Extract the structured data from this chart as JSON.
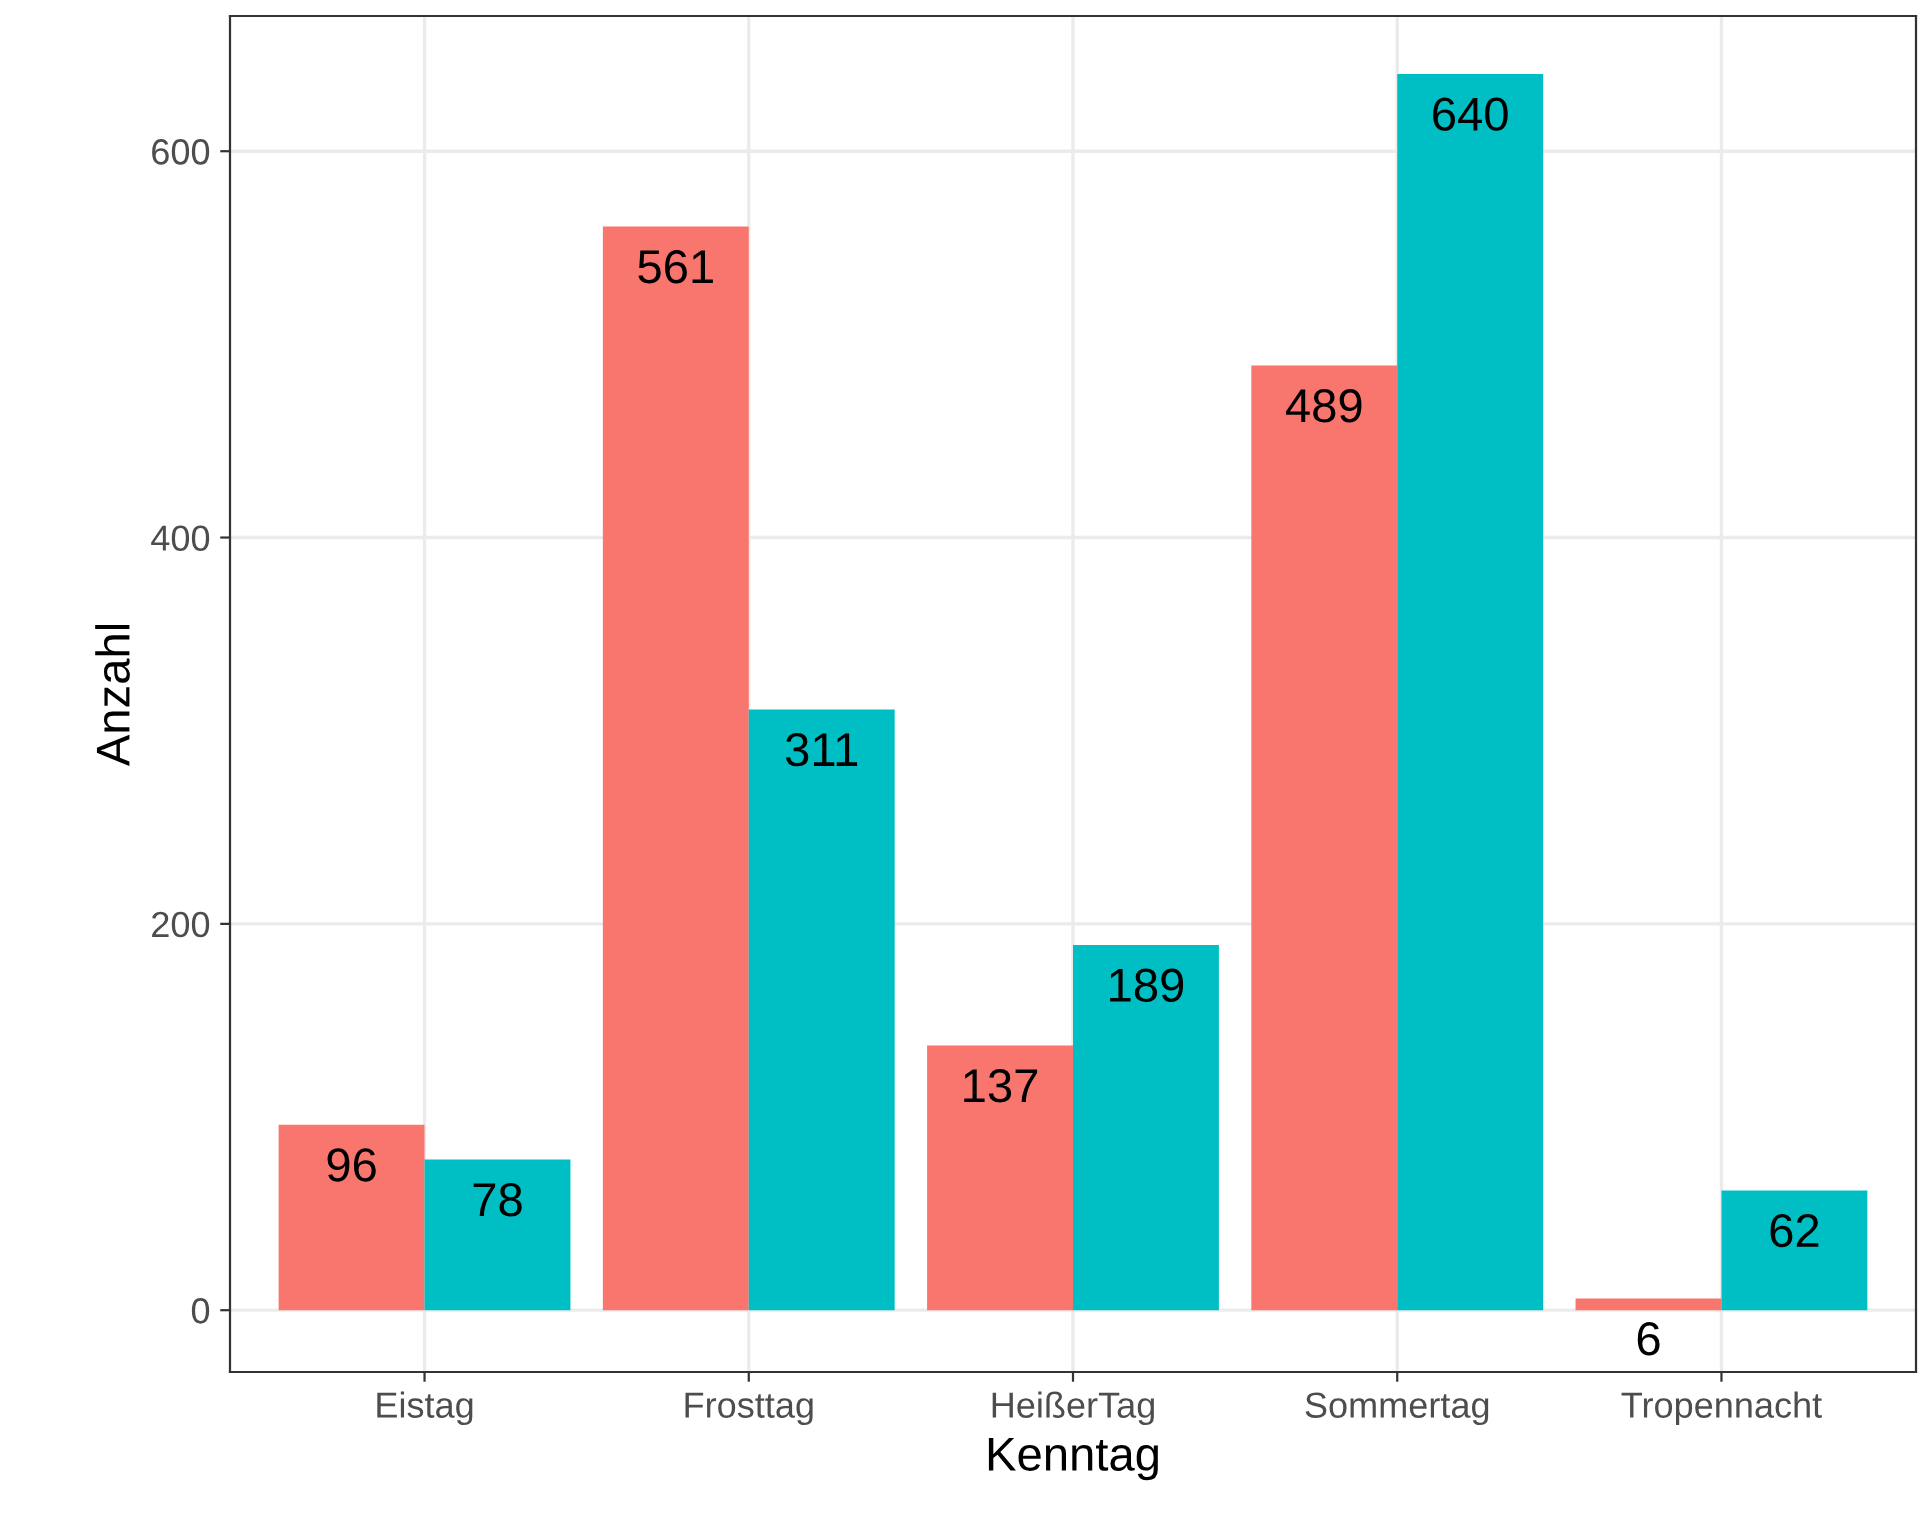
{
  "chart_data": {
    "type": "bar",
    "xlabel": "Kenntag",
    "ylabel": "Anzahl",
    "categories": [
      "Eistag",
      "Frosttag",
      "HeißerTag",
      "Sommertag",
      "Tropennacht"
    ],
    "series": [
      {
        "color": "#f8766d",
        "values": [
          96,
          561,
          137,
          489,
          6
        ]
      },
      {
        "color": "#00bfc4",
        "values": [
          78,
          311,
          189,
          640,
          62
        ]
      }
    ],
    "ylim": [
      -32,
      670
    ],
    "yticks": [
      0,
      200,
      400,
      600
    ],
    "grid": true,
    "data_labels": true
  }
}
